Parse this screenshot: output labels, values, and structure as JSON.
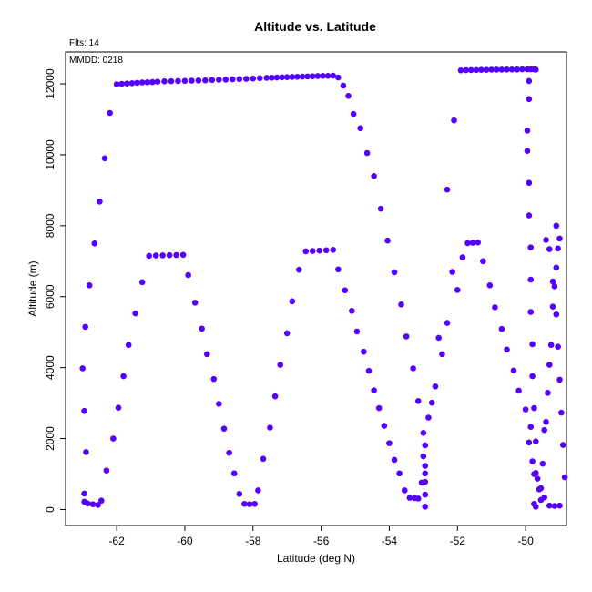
{
  "chart_data": {
    "type": "scatter",
    "title": "Altitude vs. Latitude",
    "xlabel": "Latitude (deg N)",
    "ylabel": "Altitude (m)",
    "xlim": [
      -63.5,
      -48.8
    ],
    "ylim": [
      -450,
      12900
    ],
    "xticks": [
      -62,
      -60,
      -58,
      -56,
      -54,
      -52,
      -50
    ],
    "yticks": [
      0,
      2000,
      4000,
      6000,
      8000,
      10000,
      12000
    ],
    "grid": false,
    "point_color": "#5500ff",
    "annotations": [
      "Flts: 14",
      "MMDD: 0218"
    ],
    "series": [
      {
        "points": [
          [
            -63.0,
            3980
          ],
          [
            -62.95,
            2780
          ],
          [
            -62.9,
            1620
          ],
          [
            -62.95,
            450
          ],
          [
            -62.95,
            220
          ],
          [
            -62.85,
            170
          ],
          [
            -62.7,
            150
          ],
          [
            -62.55,
            130
          ],
          [
            -62.45,
            250
          ],
          [
            -62.92,
            5150
          ],
          [
            -62.8,
            6320
          ],
          [
            -62.65,
            7500
          ],
          [
            -62.5,
            8680
          ],
          [
            -62.35,
            9900
          ],
          [
            -62.2,
            11180
          ],
          [
            -62.0,
            11990
          ],
          [
            -61.85,
            12000
          ],
          [
            -61.7,
            12010
          ],
          [
            -61.55,
            12020
          ],
          [
            -61.4,
            12030
          ],
          [
            -61.25,
            12040
          ],
          [
            -61.1,
            12045
          ],
          [
            -60.95,
            12050
          ],
          [
            -60.8,
            12060
          ],
          [
            -60.6,
            12070
          ],
          [
            -60.4,
            12075
          ],
          [
            -60.2,
            12080
          ],
          [
            -60.0,
            12085
          ],
          [
            -59.8,
            12090
          ],
          [
            -59.6,
            12095
          ],
          [
            -59.4,
            12100
          ],
          [
            -59.2,
            12110
          ],
          [
            -59.0,
            12115
          ],
          [
            -58.8,
            12120
          ],
          [
            -58.6,
            12130
          ],
          [
            -58.4,
            12135
          ],
          [
            -58.2,
            12140
          ],
          [
            -58.0,
            12150
          ],
          [
            -57.8,
            12160
          ],
          [
            -57.6,
            12170
          ],
          [
            -57.45,
            12175
          ],
          [
            -57.3,
            12180
          ],
          [
            -57.15,
            12185
          ],
          [
            -57.0,
            12190
          ],
          [
            -56.85,
            12195
          ],
          [
            -56.7,
            12200
          ],
          [
            -56.55,
            12205
          ],
          [
            -56.4,
            12210
          ],
          [
            -56.25,
            12215
          ],
          [
            -56.1,
            12220
          ],
          [
            -55.95,
            12225
          ],
          [
            -55.8,
            12225
          ],
          [
            -55.65,
            12230
          ],
          [
            -55.5,
            12180
          ],
          [
            -55.35,
            11950
          ],
          [
            -55.2,
            11660
          ],
          [
            -55.05,
            11150
          ],
          [
            -54.85,
            10750
          ],
          [
            -54.65,
            10050
          ],
          [
            -54.45,
            9400
          ],
          [
            -54.25,
            8480
          ],
          [
            -54.05,
            7580
          ],
          [
            -53.85,
            6690
          ],
          [
            -53.65,
            5780
          ],
          [
            -53.5,
            4880
          ],
          [
            -53.3,
            3980
          ],
          [
            -53.15,
            3060
          ],
          [
            -53.0,
            2160
          ],
          [
            -53.0,
            1500
          ],
          [
            -52.95,
            1230
          ],
          [
            -52.95,
            1020
          ],
          [
            -52.95,
            780
          ],
          [
            -52.95,
            420
          ],
          [
            -52.95,
            80
          ],
          [
            -62.3,
            1100
          ],
          [
            -62.1,
            2000
          ],
          [
            -61.95,
            2870
          ],
          [
            -61.8,
            3760
          ],
          [
            -61.65,
            4640
          ],
          [
            -61.45,
            5530
          ],
          [
            -61.25,
            6410
          ],
          [
            -61.05,
            7150
          ],
          [
            -60.85,
            7160
          ],
          [
            -60.65,
            7165
          ],
          [
            -60.45,
            7170
          ],
          [
            -60.25,
            7175
          ],
          [
            -60.05,
            7180
          ],
          [
            -59.9,
            6610
          ],
          [
            -59.7,
            5830
          ],
          [
            -59.5,
            5100
          ],
          [
            -59.35,
            4380
          ],
          [
            -59.15,
            3680
          ],
          [
            -59.0,
            2980
          ],
          [
            -58.85,
            2280
          ],
          [
            -58.7,
            1600
          ],
          [
            -58.55,
            1020
          ],
          [
            -58.4,
            440
          ],
          [
            -58.25,
            160
          ],
          [
            -58.1,
            150
          ],
          [
            -57.95,
            160
          ],
          [
            -57.85,
            540
          ],
          [
            -57.7,
            1430
          ],
          [
            -57.5,
            2310
          ],
          [
            -57.35,
            3190
          ],
          [
            -57.2,
            4080
          ],
          [
            -57.0,
            4970
          ],
          [
            -56.85,
            5870
          ],
          [
            -56.65,
            6760
          ],
          [
            -56.45,
            7280
          ],
          [
            -56.25,
            7290
          ],
          [
            -56.05,
            7300
          ],
          [
            -55.85,
            7310
          ],
          [
            -55.65,
            7320
          ],
          [
            -55.5,
            6770
          ],
          [
            -55.3,
            6180
          ],
          [
            -55.1,
            5600
          ],
          [
            -54.95,
            5020
          ],
          [
            -54.75,
            4450
          ],
          [
            -54.6,
            3910
          ],
          [
            -54.45,
            3360
          ],
          [
            -54.3,
            2860
          ],
          [
            -54.15,
            2360
          ],
          [
            -54.0,
            1870
          ],
          [
            -53.85,
            1400
          ],
          [
            -53.7,
            1020
          ],
          [
            -53.55,
            540
          ],
          [
            -53.4,
            330
          ],
          [
            -53.25,
            320
          ],
          [
            -53.15,
            310
          ],
          [
            -53.05,
            760
          ],
          [
            -52.95,
            1810
          ],
          [
            -52.85,
            2590
          ],
          [
            -52.75,
            3010
          ],
          [
            -52.65,
            3470
          ],
          [
            -52.55,
            4840
          ],
          [
            -52.45,
            4380
          ],
          [
            -52.3,
            5260
          ],
          [
            -52.15,
            6700
          ],
          [
            -52.0,
            6190
          ],
          [
            -51.85,
            7110
          ],
          [
            -51.7,
            7510
          ],
          [
            -51.55,
            7520
          ],
          [
            -51.4,
            7530
          ],
          [
            -51.25,
            7000
          ],
          [
            -51.05,
            6320
          ],
          [
            -50.9,
            5700
          ],
          [
            -50.7,
            5090
          ],
          [
            -50.55,
            4510
          ],
          [
            -50.35,
            3920
          ],
          [
            -50.2,
            3350
          ],
          [
            -50.0,
            2820
          ],
          [
            -49.85,
            2330
          ],
          [
            -52.3,
            9020
          ],
          [
            -52.1,
            10970
          ],
          [
            -51.9,
            12380
          ],
          [
            -51.75,
            12385
          ],
          [
            -51.6,
            12390
          ],
          [
            -51.45,
            12390
          ],
          [
            -51.3,
            12395
          ],
          [
            -51.15,
            12395
          ],
          [
            -51.0,
            12400
          ],
          [
            -50.85,
            12400
          ],
          [
            -50.7,
            12400
          ],
          [
            -50.55,
            12405
          ],
          [
            -50.4,
            12405
          ],
          [
            -50.25,
            12405
          ],
          [
            -50.1,
            12410
          ],
          [
            -49.95,
            12410
          ],
          [
            -49.85,
            12410
          ],
          [
            -49.75,
            12410
          ],
          [
            -49.7,
            12400
          ],
          [
            -49.9,
            12080
          ],
          [
            -49.9,
            11570
          ],
          [
            -49.95,
            10680
          ],
          [
            -49.95,
            10110
          ],
          [
            -49.9,
            9210
          ],
          [
            -49.9,
            8290
          ],
          [
            -49.85,
            7390
          ],
          [
            -49.85,
            6480
          ],
          [
            -49.85,
            5570
          ],
          [
            -49.8,
            4660
          ],
          [
            -49.8,
            3760
          ],
          [
            -49.75,
            2860
          ],
          [
            -49.7,
            1920
          ],
          [
            -49.75,
            1000
          ],
          [
            -49.75,
            160
          ],
          [
            -49.7,
            80
          ],
          [
            -49.9,
            1890
          ],
          [
            -49.8,
            1360
          ],
          [
            -49.7,
            1030
          ],
          [
            -49.65,
            870
          ],
          [
            -49.6,
            570
          ],
          [
            -49.55,
            270
          ],
          [
            -49.5,
            1290
          ],
          [
            -49.45,
            2240
          ],
          [
            -49.4,
            2470
          ],
          [
            -49.35,
            3290
          ],
          [
            -49.3,
            4080
          ],
          [
            -49.25,
            4640
          ],
          [
            -49.2,
            5720
          ],
          [
            -49.15,
            6290
          ],
          [
            -49.1,
            6820
          ],
          [
            -49.05,
            7360
          ],
          [
            -49.0,
            7640
          ],
          [
            -49.1,
            8000
          ],
          [
            -49.4,
            7600
          ],
          [
            -49.3,
            7340
          ],
          [
            -49.2,
            6430
          ],
          [
            -49.1,
            5500
          ],
          [
            -49.05,
            4590
          ],
          [
            -49.0,
            3660
          ],
          [
            -48.95,
            2730
          ],
          [
            -48.9,
            1820
          ],
          [
            -48.85,
            910
          ],
          [
            -49.0,
            110
          ],
          [
            -49.15,
            100
          ],
          [
            -49.3,
            110
          ],
          [
            -49.45,
            340
          ],
          [
            -49.55,
            600
          ]
        ]
      }
    ]
  }
}
